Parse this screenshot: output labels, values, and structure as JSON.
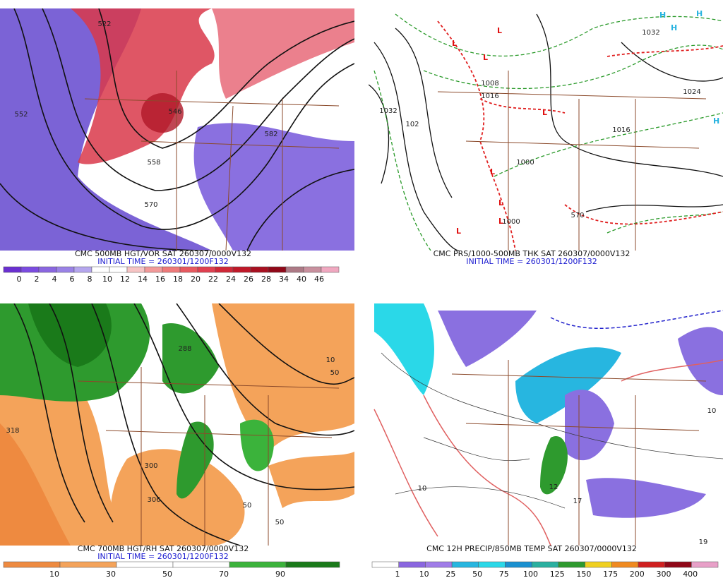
{
  "panels": [
    {
      "title": "CMC 500MB HGT/VOR SAT 260307/0000V132",
      "initial_time": "INITIAL TIME = 260301/1200F132",
      "colorbar_labels": [
        0,
        2,
        4,
        6,
        8,
        10,
        12,
        14,
        16,
        18,
        20,
        22,
        24,
        26,
        28,
        34,
        40,
        46
      ],
      "map_labels": [
        "552",
        "558",
        "546",
        "570",
        "582",
        "522"
      ]
    },
    {
      "title": "CMC PRS/1000-500MB THK SAT 260307/0000V132",
      "initial_time": "INITIAL TIME = 260301/1200F132",
      "map_labels": [
        "1032",
        "1016",
        "1008",
        "1000",
        "1024",
        "1016",
        "570",
        "1000",
        "1032",
        "102"
      ]
    },
    {
      "title": "CMC 700MB HGT/RH SAT 260307/0000V132",
      "initial_time": "INITIAL TIME = 260301/1200F132",
      "colorbar_labels": [
        10,
        30,
        50,
        70,
        90
      ],
      "map_labels": [
        "318",
        "288",
        "300",
        "306",
        "50",
        "50",
        "10",
        "50"
      ]
    },
    {
      "title": "CMC 12H PRECIP/850MB TEMP SAT 260307/0000V132",
      "colorbar_labels": [
        1,
        10,
        25,
        50,
        75,
        100,
        125,
        150,
        175,
        200,
        300,
        400
      ],
      "map_labels": [
        "10",
        "17",
        "19",
        "12",
        "10"
      ]
    }
  ]
}
